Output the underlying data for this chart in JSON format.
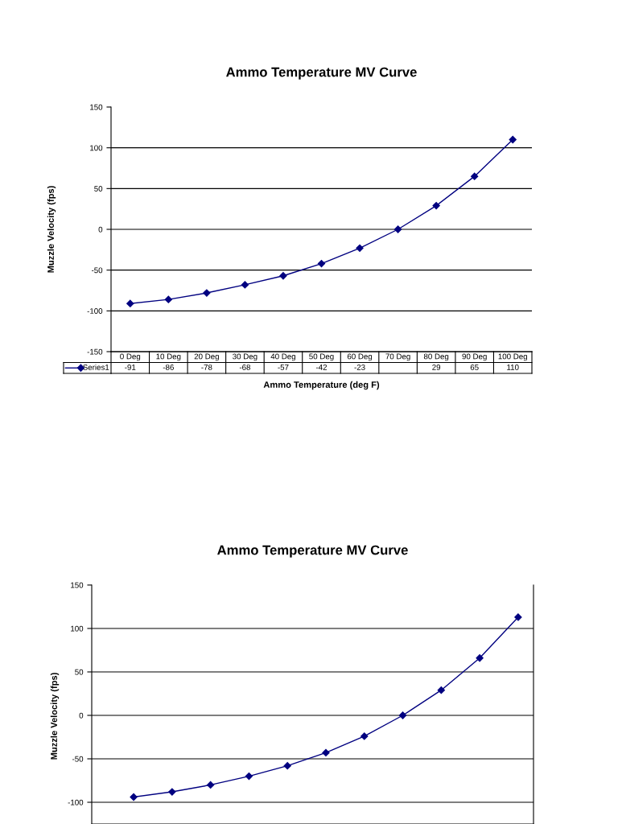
{
  "chart_data": [
    {
      "type": "line",
      "title": "Ammo Temperature MV Curve",
      "xlabel": "Ammo Temperature (deg F)",
      "ylabel": "Muzzle Velocity (fps)",
      "categories": [
        "0 Deg",
        "10 Deg",
        "20 Deg",
        "30 Deg",
        "40 Deg",
        "50 Deg",
        "60 Deg",
        "70 Deg",
        "80 Deg",
        "90 Deg",
        "100 Deg"
      ],
      "series": [
        {
          "name": "Series1",
          "color": "#000080",
          "values": [
            -91,
            -86,
            -78,
            -68,
            -57,
            -42,
            -23,
            0,
            29,
            65,
            110
          ],
          "value_labels": [
            "-91",
            "-86",
            "-78",
            "-68",
            "-57",
            "-42",
            "-23",
            null,
            "29",
            "65",
            "110"
          ]
        }
      ],
      "ylim": [
        -150,
        150
      ],
      "yticks": [
        -150,
        -100,
        -50,
        0,
        50,
        100,
        150
      ],
      "grid": "y",
      "marker": "diamond",
      "legend": "bottom",
      "tick_labels": "y"
    },
    {
      "type": "line",
      "title": "Ammo Temperature MV Curve",
      "ylabel": "Muzzle Velocity (fps)",
      "categories": [
        null,
        null,
        null,
        null,
        null,
        null,
        null,
        null,
        null,
        null,
        null
      ],
      "series": [
        {
          "color": "#000080",
          "values": [
            -94,
            -88,
            -80,
            -70,
            -58,
            -43,
            -24,
            0,
            29,
            66,
            113
          ]
        }
      ],
      "ylim": [
        -125,
        150
      ],
      "yticks": [
        -100,
        -50,
        0,
        50,
        100,
        150
      ],
      "grid": "y",
      "marker": "diamond",
      "tick_labels": "y"
    }
  ]
}
